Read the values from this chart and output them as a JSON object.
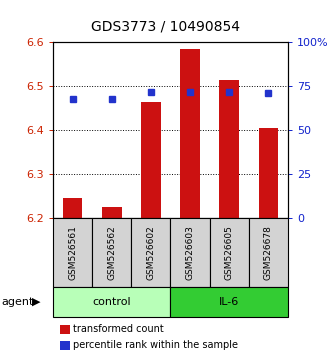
{
  "title": "GDS3773 / 10490854",
  "samples": [
    "GSM526561",
    "GSM526562",
    "GSM526602",
    "GSM526603",
    "GSM526605",
    "GSM526678"
  ],
  "groups": [
    {
      "name": "control",
      "color": "#b8ffb8",
      "indices": [
        0,
        1,
        2
      ]
    },
    {
      "name": "IL-6",
      "color": "#33cc33",
      "indices": [
        3,
        4,
        5
      ]
    }
  ],
  "bar_bottom": 6.2,
  "bar_tops": [
    6.245,
    6.225,
    6.465,
    6.585,
    6.515,
    6.405
  ],
  "percentile_values": [
    0.675,
    0.675,
    0.715,
    0.72,
    0.715,
    0.71
  ],
  "ylim_left": [
    6.2,
    6.6
  ],
  "ylim_right": [
    0.0,
    1.0
  ],
  "yticks_left": [
    6.2,
    6.3,
    6.4,
    6.5,
    6.6
  ],
  "yticks_right": [
    0.0,
    0.25,
    0.5,
    0.75,
    1.0
  ],
  "yticklabels_right": [
    "0",
    "25",
    "50",
    "75",
    "100%"
  ],
  "bar_color": "#cc1111",
  "dot_color": "#2233cc",
  "left_tick_color": "#cc2200",
  "right_tick_color": "#1122cc",
  "legend_items": [
    {
      "color": "#cc1111",
      "label": "transformed count"
    },
    {
      "color": "#2233cc",
      "label": "percentile rank within the sample"
    }
  ]
}
